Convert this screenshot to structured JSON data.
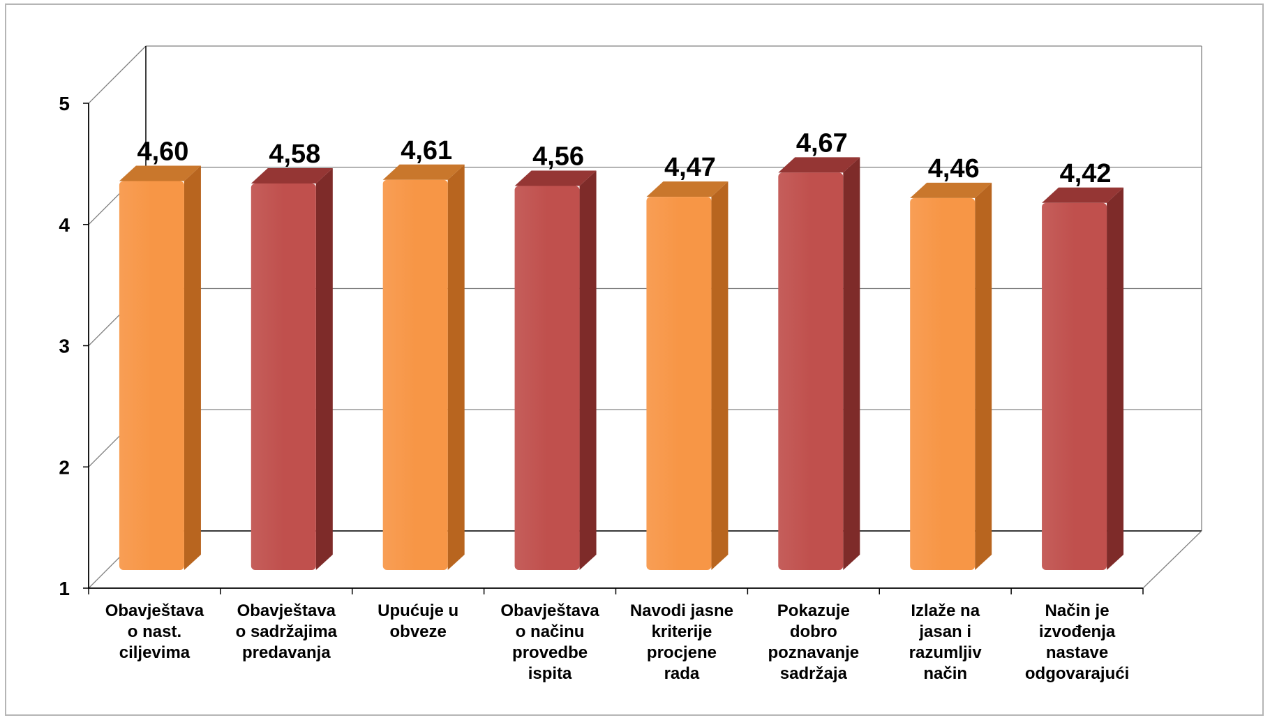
{
  "chart_data": {
    "type": "bar",
    "style": "3d-columns",
    "categories": [
      [
        "Obavještava",
        "o nast.",
        "ciljevima"
      ],
      [
        "Obavještava",
        "o sadržajima",
        "predavanja"
      ],
      [
        "Upućuje u",
        "obveze"
      ],
      [
        "Obavještava",
        "o načinu",
        "provedbe",
        "ispita"
      ],
      [
        "Navodi jasne",
        "kriterije",
        "procjene",
        "rada"
      ],
      [
        "Pokazuje",
        "dobro",
        "poznavanje",
        "sadržaja"
      ],
      [
        "Izlaže na",
        "jasan i",
        "razumljiv",
        "način"
      ],
      [
        "Način je",
        "izvođenja",
        "nastave",
        "odgovarajući"
      ]
    ],
    "values": [
      4.6,
      4.58,
      4.61,
      4.56,
      4.47,
      4.67,
      4.46,
      4.42
    ],
    "value_labels": [
      "4,60",
      "4,58",
      "4,61",
      "4,56",
      "4,47",
      "4,67",
      "4,46",
      "4,42"
    ],
    "bar_colors": [
      "orange",
      "red",
      "orange",
      "red",
      "orange",
      "red",
      "orange",
      "red"
    ],
    "colors": {
      "orange": {
        "front": "#f79646",
        "side": "#b8651f",
        "top": "#c9772c"
      },
      "red": {
        "front": "#c0504d",
        "side": "#7e2b29",
        "top": "#953634"
      }
    },
    "y_ticks": [
      "1",
      "2",
      "3",
      "4",
      "5"
    ],
    "ylim": [
      1,
      5
    ],
    "gridlines": true,
    "title": "",
    "xlabel": "",
    "ylabel": ""
  }
}
